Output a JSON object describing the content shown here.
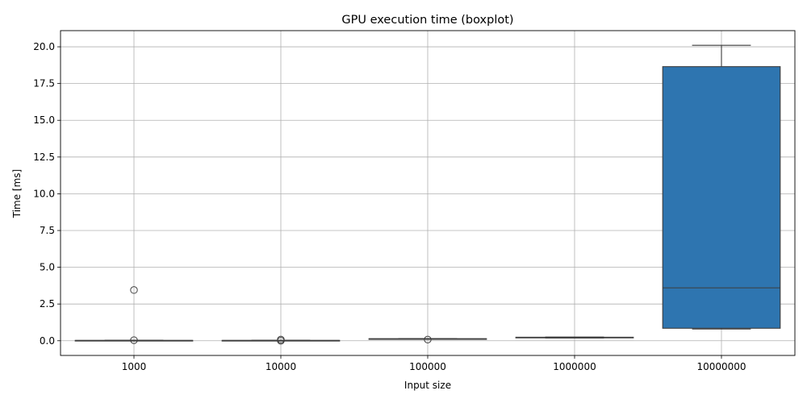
{
  "chart_data": {
    "type": "boxplot",
    "title": "GPU execution time (boxplot)",
    "xlabel": "Input size",
    "ylabel": "Time [ms]",
    "ylim": [
      -1.0,
      21.1
    ],
    "yticks": [
      "0.0",
      "2.5",
      "5.0",
      "7.5",
      "10.0",
      "12.5",
      "15.0",
      "17.5",
      "20.0"
    ],
    "grid": true,
    "box_color": "#2e75b0",
    "categories": [
      "1000",
      "10000",
      "100000",
      "1000000",
      "10000000"
    ],
    "boxes": [
      {
        "category": "1000",
        "whisker_low": 0.01,
        "q1": 0.015,
        "median": 0.02,
        "q3": 0.025,
        "whisker_high": 0.03,
        "outliers": [
          3.45,
          0.04
        ]
      },
      {
        "category": "10000",
        "whisker_low": 0.01,
        "q1": 0.015,
        "median": 0.02,
        "q3": 0.025,
        "whisker_high": 0.03,
        "outliers": [
          0.08,
          0.0
        ]
      },
      {
        "category": "100000",
        "whisker_low": 0.11,
        "q1": 0.12,
        "median": 0.13,
        "q3": 0.14,
        "whisker_high": 0.15,
        "outliers": [
          0.08
        ]
      },
      {
        "category": "1000000",
        "whisker_low": 0.19,
        "q1": 0.2,
        "median": 0.22,
        "q3": 0.24,
        "whisker_high": 0.25,
        "outliers": []
      },
      {
        "category": "10000000",
        "whisker_low": 0.8,
        "q1": 0.85,
        "median": 3.6,
        "q3": 18.65,
        "whisker_high": 20.1,
        "outliers": []
      }
    ]
  }
}
